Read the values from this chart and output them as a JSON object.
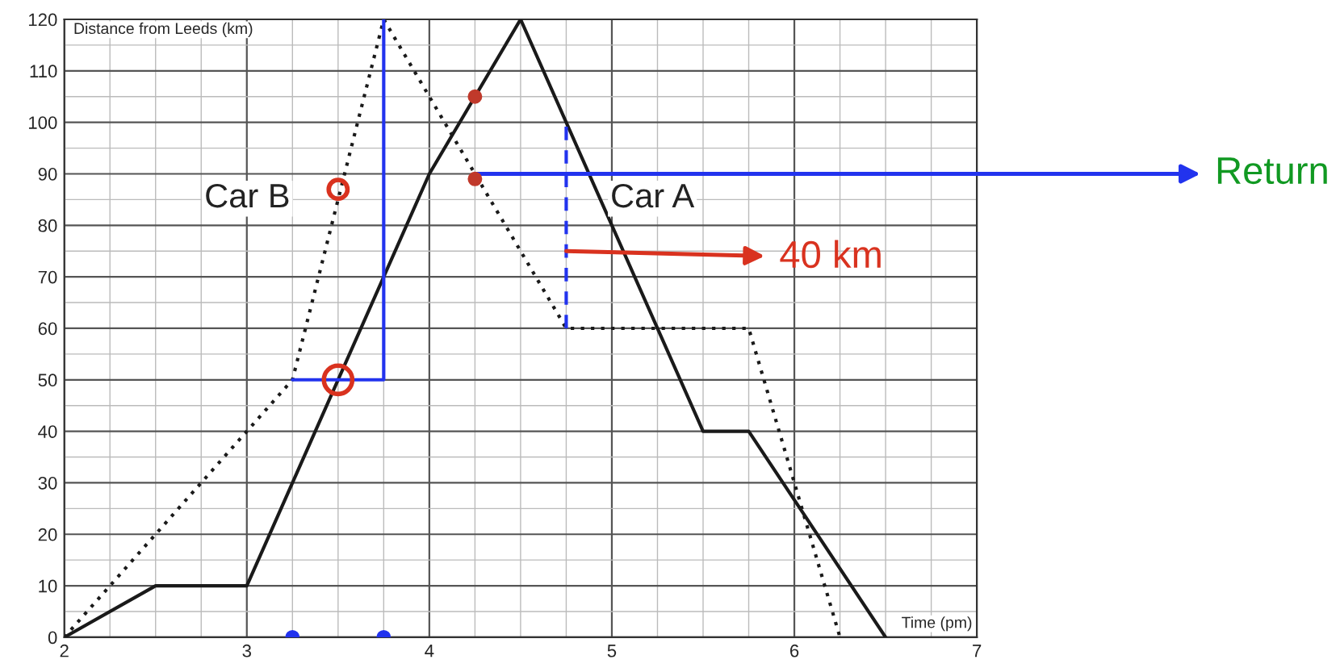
{
  "chart_data": {
    "type": "line",
    "xlabel": "Time (pm)",
    "ylabel": "Distance from Leeds (km)",
    "xlim": [
      2,
      7
    ],
    "ylim": [
      0,
      120
    ],
    "xticks": [
      2,
      3,
      4,
      5,
      6,
      7
    ],
    "yticks": [
      0,
      10,
      20,
      30,
      40,
      50,
      60,
      70,
      80,
      90,
      100,
      110,
      120
    ],
    "grid": true,
    "series": [
      {
        "name": "Car A",
        "color": "#1a1a1a",
        "x": [
          2,
          2.5,
          3,
          4,
          4.5,
          5.5,
          5.75,
          6.5
        ],
        "values": [
          0,
          10,
          10,
          90,
          120,
          40,
          40,
          0
        ],
        "line_style": "solid"
      },
      {
        "name": "Car B",
        "color": "#1a1a1a",
        "x": [
          2,
          3.25,
          3.75,
          4.75,
          5.75,
          6.25
        ],
        "values": [
          0,
          50,
          120,
          60,
          60,
          0
        ],
        "line_style": "dotted"
      },
      {
        "color": "#2233ee",
        "x": [
          3.25,
          3.75,
          3.75
        ],
        "values": [
          50,
          50,
          120
        ],
        "line_style": "solid"
      },
      {
        "color": "#2233ee",
        "x": [
          4.75,
          4.75
        ],
        "values": [
          60,
          100
        ],
        "line_style": "dashed"
      },
      {
        "type": "scatter",
        "color": "#2233ee",
        "x": [
          3.25,
          3.75
        ],
        "values": [
          0,
          0
        ]
      },
      {
        "type": "scatter",
        "color": "#c0392b",
        "x": [
          4.25,
          4.25
        ],
        "values": [
          105,
          89
        ]
      },
      {
        "type": "scatter",
        "color": "#d9321f",
        "marker": "circle",
        "x": [
          3.5,
          3.5
        ],
        "values": [
          50,
          87
        ]
      }
    ],
    "annotations": [
      {
        "text": "Return",
        "x": 4.25,
        "y": 90
      },
      {
        "text": "40 km",
        "x": 4.75,
        "y": 75
      }
    ]
  }
}
